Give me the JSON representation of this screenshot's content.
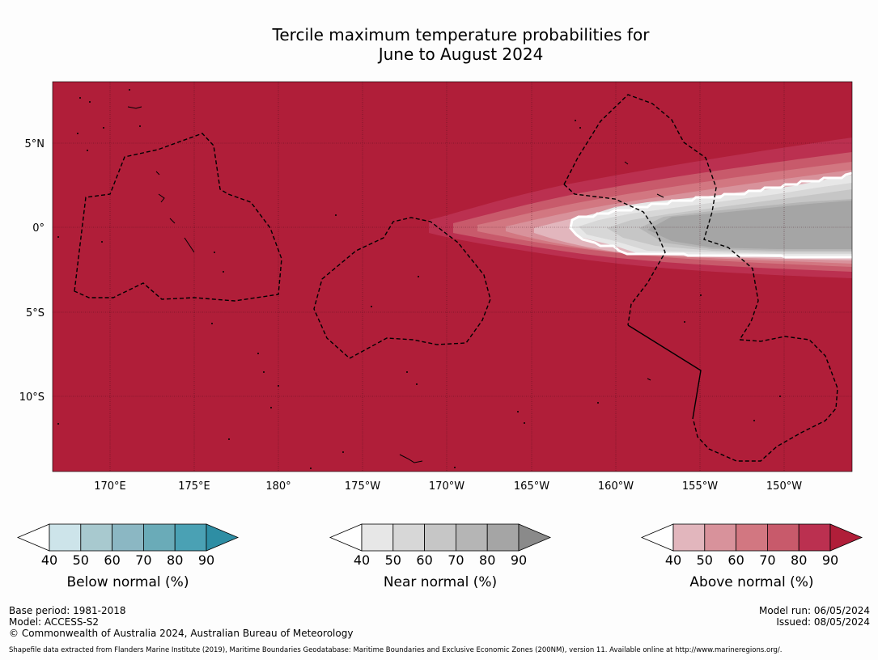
{
  "title_line1": "Tercile maximum temperature probabilities for",
  "title_line2": "June to August 2024",
  "map": {
    "lon_labels": [
      "170°E",
      "175°E",
      "180°",
      "175°W",
      "170°W",
      "165°W",
      "160°W",
      "155°W",
      "150°W"
    ],
    "lat_labels": [
      "5°N",
      "0°",
      "5°S",
      "10°S"
    ],
    "background_color": "#b01e39"
  },
  "colorbars": [
    {
      "title": "Below normal (%)",
      "ticks": [
        "40",
        "50",
        "60",
        "70",
        "80",
        "90"
      ],
      "colors": [
        "#ffffff",
        "#cde4ea",
        "#a8c9cf",
        "#8bb7c3",
        "#6aabb8",
        "#4aa1b4",
        "#2e8ea4"
      ]
    },
    {
      "title": "Near normal (%)",
      "ticks": [
        "40",
        "50",
        "60",
        "70",
        "80",
        "90"
      ],
      "colors": [
        "#ffffff",
        "#e7e7e7",
        "#d7d7d7",
        "#c6c6c6",
        "#b5b5b5",
        "#a5a5a5",
        "#8a8a8a"
      ]
    },
    {
      "title": "Above normal (%)",
      "ticks": [
        "40",
        "50",
        "60",
        "70",
        "80",
        "90"
      ],
      "colors": [
        "#ffffff",
        "#e2b6bd",
        "#d8929b",
        "#d27781",
        "#c85a6b",
        "#bb3050",
        "#b01e39"
      ]
    }
  ],
  "footer": {
    "base_period": "Base period: 1981-2018",
    "model": "Model: ACCESS-S2",
    "copyright": "© Commonwealth of Australia 2024, Australian Bureau of Meteorology",
    "model_run": "Model run: 06/05/2024",
    "issued": "Issued: 08/05/2024",
    "shapefile_note": "Shapefile data extracted from Flanders Marine Institute (2019), Maritime Boundaries Geodatabase: Maritime Boundaries and Exclusive Economic Zones (200NM), version 11. Available online at http://www.marineregions.org/."
  }
}
